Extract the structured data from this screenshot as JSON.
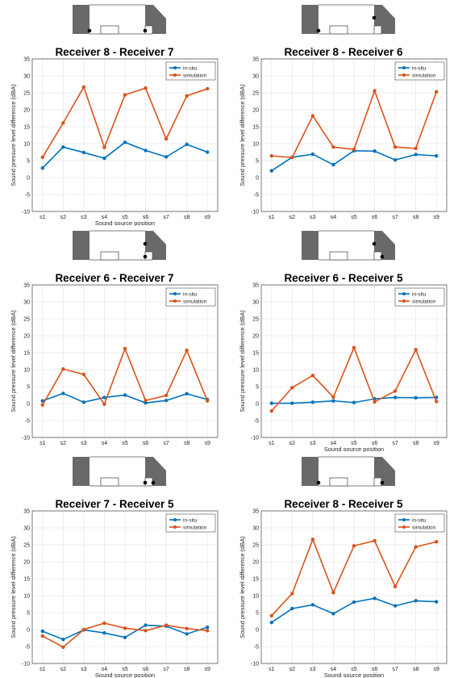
{
  "colors": {
    "insitu": "#0072BD",
    "simulation": "#D95319",
    "wall": "#696969",
    "grid": "#e6e6e6"
  },
  "chart_data": [
    {
      "type": "line",
      "title": "Receiver 8 - Receiver 7",
      "xlabel": "Sound source position",
      "ylabel": "Sound pressure level difference (dBA)",
      "categories": [
        "s1",
        "s2",
        "s3",
        "s4",
        "s5",
        "s6",
        "s7",
        "s8",
        "s9"
      ],
      "ylim": [
        -10,
        35
      ],
      "yticks": [
        -10,
        -5,
        0,
        5,
        10,
        15,
        20,
        25,
        30,
        35
      ],
      "grid": true,
      "legend_position": "top-right",
      "series": [
        {
          "name": "in-situ",
          "values": [
            2.8,
            9.0,
            7.4,
            5.7,
            10.4,
            8.0,
            6.1,
            9.8,
            7.5
          ]
        },
        {
          "name": "simulation",
          "values": [
            6.0,
            16.1,
            26.7,
            8.9,
            24.4,
            26.4,
            11.4,
            24.1,
            26.2
          ]
        }
      ],
      "receivers": [
        "left",
        "right"
      ]
    },
    {
      "type": "line",
      "title": "Receiver 8 - Receiver 6",
      "xlabel": "",
      "ylabel": "Sound pressure level difference (dBA)",
      "categories": [
        "s1",
        "s2",
        "s3",
        "s4",
        "s5",
        "s6",
        "s7",
        "s8",
        "s9"
      ],
      "ylim": [
        -10,
        35
      ],
      "yticks": [
        -10,
        -5,
        0,
        5,
        10,
        15,
        20,
        25,
        30,
        35
      ],
      "grid": true,
      "legend_position": "top-right",
      "series": [
        {
          "name": "in-situ",
          "values": [
            2.0,
            6.0,
            6.9,
            3.8,
            7.9,
            7.8,
            5.2,
            6.8,
            6.4
          ]
        },
        {
          "name": "simulation",
          "values": [
            6.4,
            5.9,
            18.2,
            9.0,
            8.3,
            25.6,
            9.0,
            8.6,
            25.3
          ]
        }
      ],
      "receivers": [
        "left",
        "right-top"
      ]
    },
    {
      "type": "line",
      "title": "Receiver 6 - Receiver 7",
      "xlabel": "",
      "ylabel": "Sound pressure level difference (dBA)",
      "categories": [
        "s1",
        "s2",
        "s3",
        "s4",
        "s5",
        "s6",
        "s7",
        "s8",
        "s9"
      ],
      "ylim": [
        -10,
        35
      ],
      "yticks": [
        -10,
        -5,
        0,
        5,
        10,
        15,
        20,
        25,
        30,
        35
      ],
      "grid": true,
      "legend_position": "top-right",
      "series": [
        {
          "name": "in-situ",
          "values": [
            0.8,
            3.0,
            0.4,
            1.8,
            2.5,
            0.2,
            0.9,
            2.9,
            1.2
          ]
        },
        {
          "name": "simulation",
          "values": [
            -0.4,
            10.2,
            8.6,
            -0.2,
            16.2,
            0.9,
            2.4,
            15.7,
            0.8
          ]
        }
      ],
      "receivers": [
        "right-top",
        "right"
      ]
    },
    {
      "type": "line",
      "title": "Receiver 6 - Receiver 5",
      "xlabel": "Sound source position",
      "ylabel": "Sound pressure level difference (dBA)",
      "categories": [
        "s1",
        "s2",
        "s3",
        "s4",
        "s5",
        "s6",
        "s7",
        "s8",
        "s9"
      ],
      "ylim": [
        -10,
        35
      ],
      "yticks": [
        -10,
        -5,
        0,
        5,
        10,
        15,
        20,
        25,
        30,
        35
      ],
      "grid": true,
      "legend_position": "top-right",
      "series": [
        {
          "name": "in-situ",
          "values": [
            0.1,
            0.1,
            0.4,
            0.8,
            0.3,
            1.4,
            1.8,
            1.7,
            1.8
          ]
        },
        {
          "name": "simulation",
          "values": [
            -2.2,
            4.7,
            8.3,
            1.9,
            16.5,
            0.5,
            3.7,
            15.9,
            0.6
          ]
        }
      ],
      "receivers": [
        "right-top",
        "right-inner"
      ]
    },
    {
      "type": "line",
      "title": "Receiver 7 - Receiver 5",
      "xlabel": "Sound source position",
      "ylabel": "Sound pressure level difference (dBA)",
      "categories": [
        "s1",
        "s2",
        "s3",
        "s4",
        "s5",
        "s6",
        "s7",
        "s8",
        "s9"
      ],
      "ylim": [
        -10,
        35
      ],
      "yticks": [
        -10,
        -5,
        0,
        5,
        10,
        15,
        20,
        25,
        30,
        35
      ],
      "grid": true,
      "legend_position": "top-right",
      "series": [
        {
          "name": "in-situ",
          "values": [
            -0.5,
            -2.9,
            -0.1,
            -1.0,
            -2.3,
            1.3,
            1.0,
            -1.3,
            0.7
          ]
        },
        {
          "name": "simulation",
          "values": [
            -1.9,
            -5.2,
            0.0,
            1.9,
            0.4,
            -0.3,
            1.3,
            0.3,
            -0.3
          ]
        }
      ],
      "receivers": [
        "right",
        "right-inner"
      ]
    },
    {
      "type": "line",
      "title": "Receiver 8 - Receiver 5",
      "xlabel": "Sound source position",
      "ylabel": "Sound pressure level difference (dBA)",
      "categories": [
        "s1",
        "s2",
        "s3",
        "s4",
        "s5",
        "s6",
        "s7",
        "s8",
        "s9"
      ],
      "ylim": [
        -10,
        35
      ],
      "yticks": [
        -10,
        -5,
        0,
        5,
        10,
        15,
        20,
        25,
        30,
        35
      ],
      "grid": true,
      "legend_position": "top-right",
      "series": [
        {
          "name": "in-situ",
          "values": [
            2.1,
            6.2,
            7.3,
            4.7,
            8.1,
            9.2,
            7.0,
            8.5,
            8.2
          ]
        },
        {
          "name": "simulation",
          "values": [
            4.1,
            10.6,
            26.6,
            10.9,
            24.7,
            26.2,
            12.7,
            24.4,
            25.9
          ]
        }
      ],
      "receivers": [
        "left",
        "right-inner"
      ]
    }
  ]
}
